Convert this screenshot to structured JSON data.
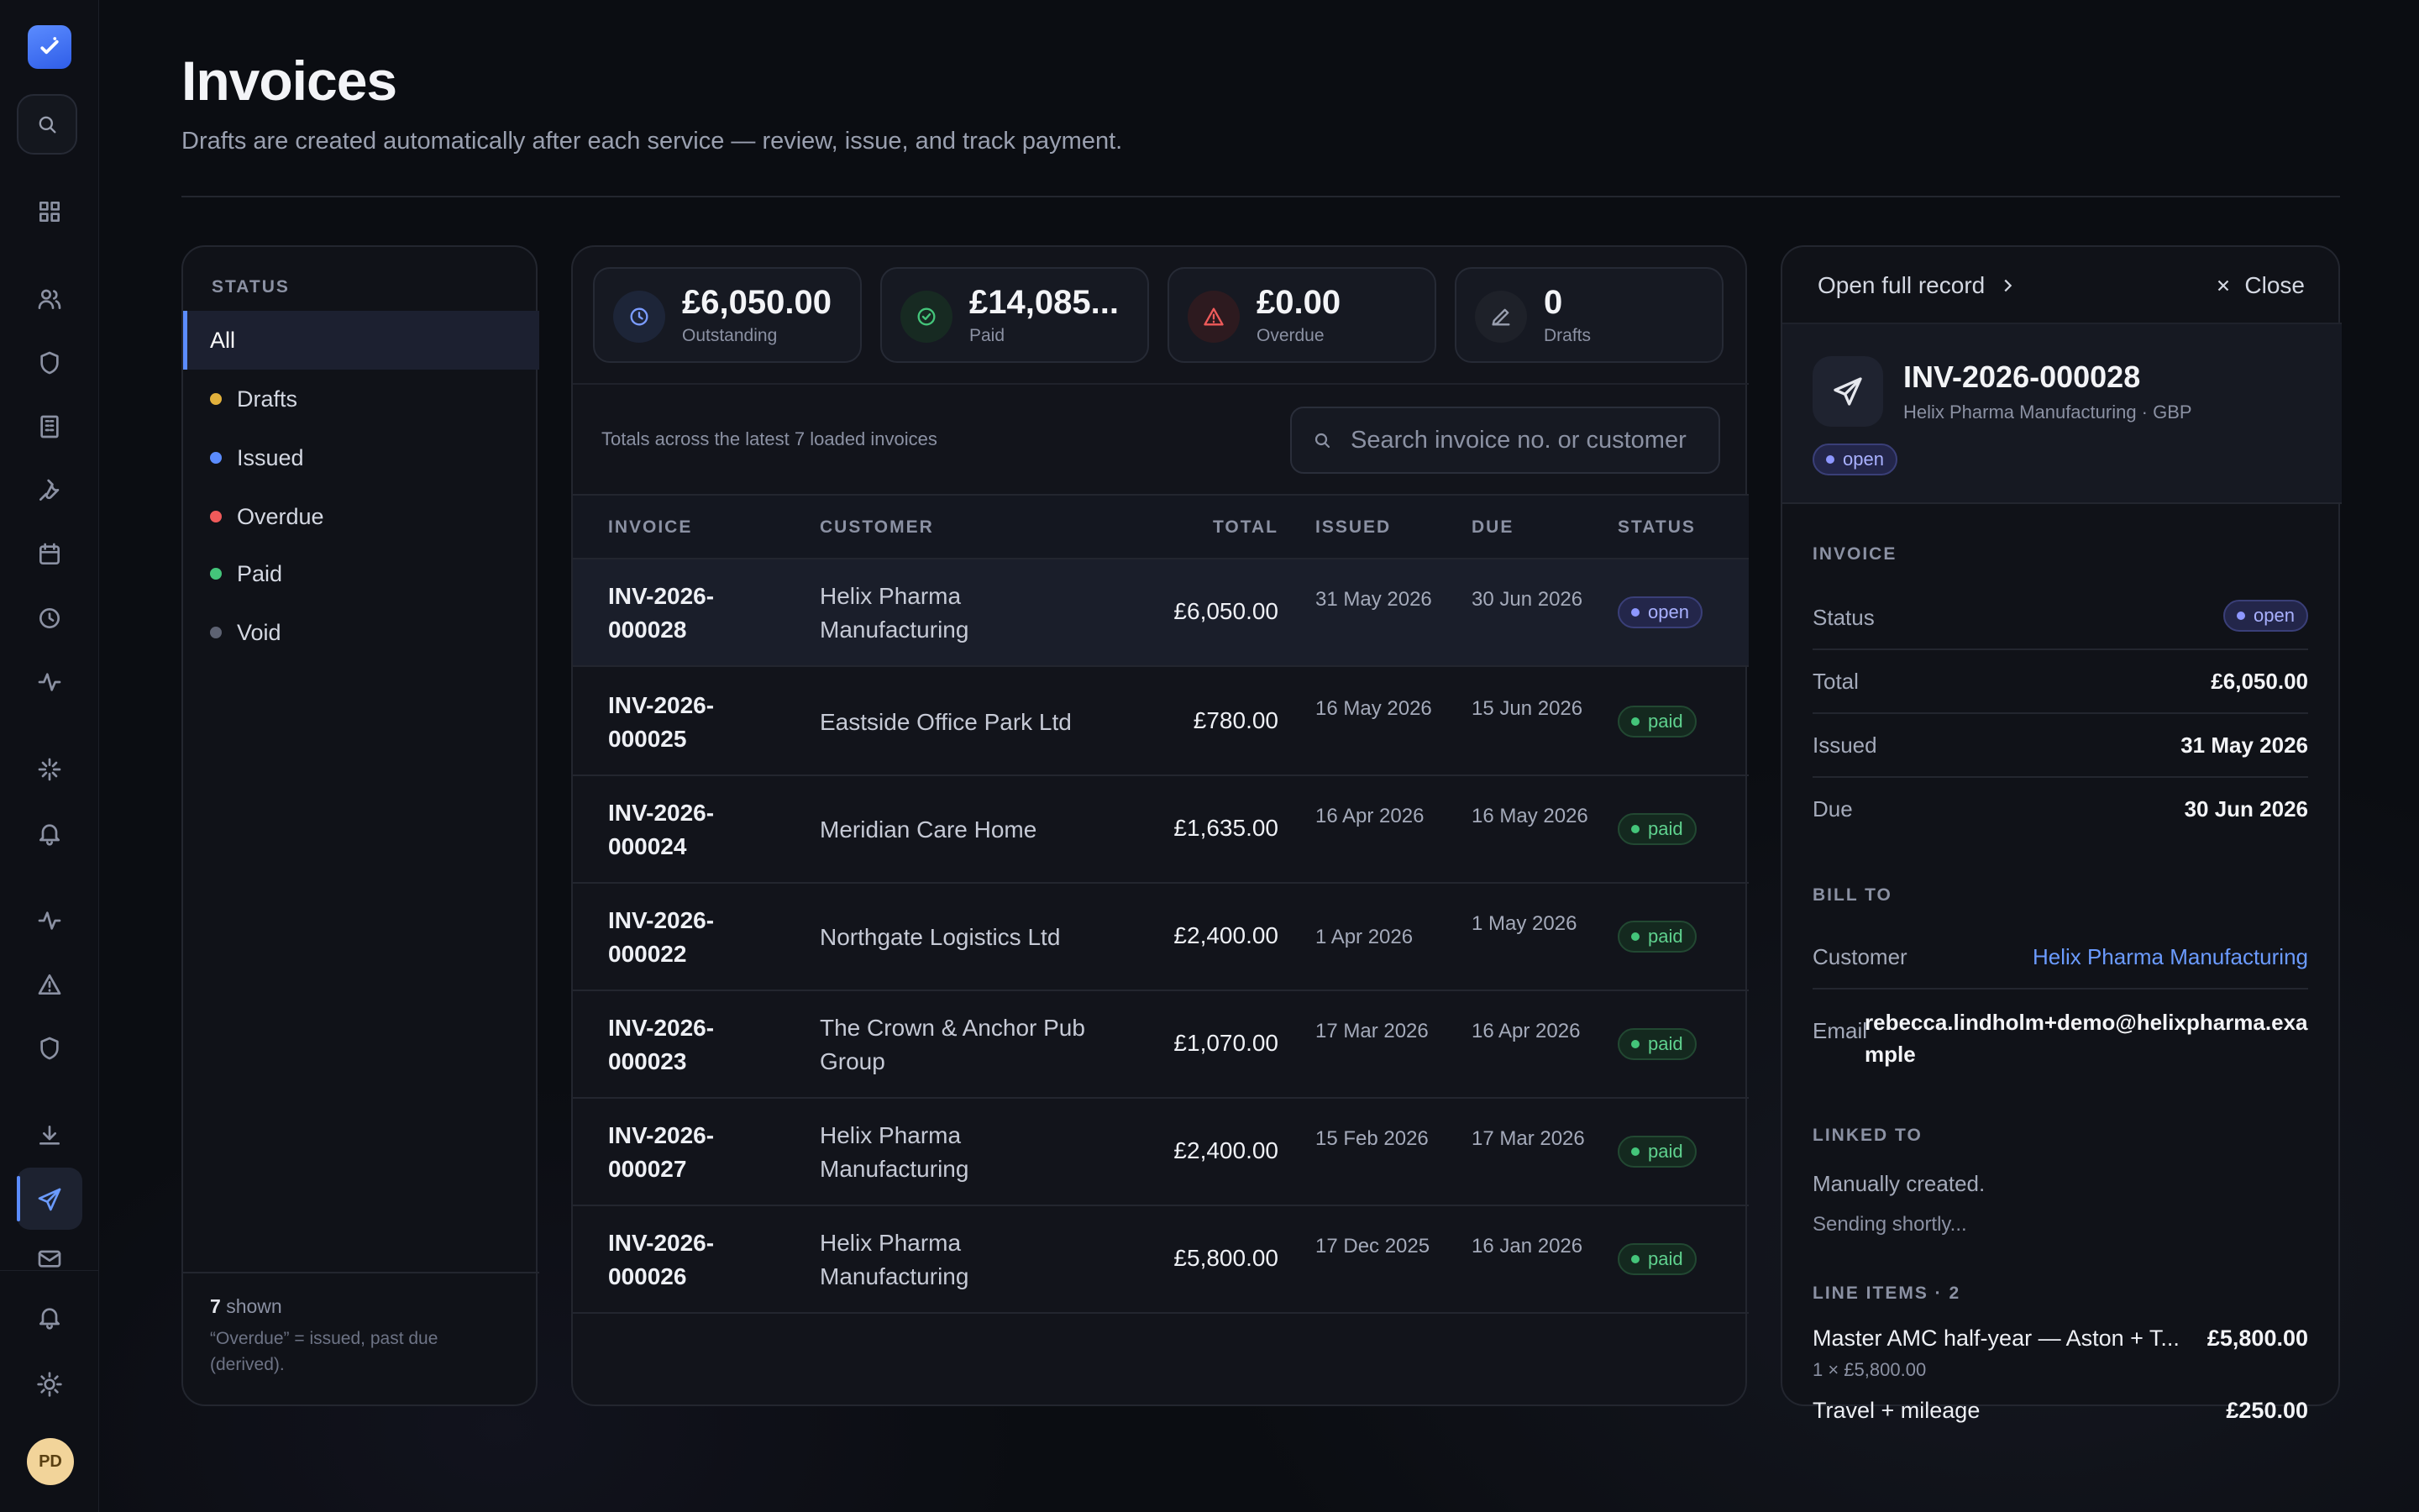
{
  "header": {
    "title": "Invoices",
    "subtitle": "Drafts are created automatically after each service — review, issue, and track payment."
  },
  "rail": {
    "avatar_initials": "PD",
    "icons": [
      "search-icon",
      "dashboard-icon",
      "users-icon",
      "shield-icon",
      "building-icon",
      "wrench-icon",
      "calendar-icon",
      "clock-icon",
      "activity-icon",
      "sparkle-icon",
      "bell-icon",
      "pulse-icon",
      "warning-icon",
      "shield-icon",
      "download-icon",
      "send-icon",
      "mail-icon",
      "bell-icon",
      "sun-icon"
    ],
    "active": "send-icon"
  },
  "status_filter": {
    "heading": "STATUS",
    "items": [
      {
        "label": "All",
        "color": null,
        "active": true
      },
      {
        "label": "Drafts",
        "color": "#e2b13c"
      },
      {
        "label": "Issued",
        "color": "#5b8cff"
      },
      {
        "label": "Overdue",
        "color": "#ef5a5a"
      },
      {
        "label": "Paid",
        "color": "#44c57a"
      },
      {
        "label": "Void",
        "color": "#5d6272"
      }
    ],
    "shown_count": "7",
    "shown_label": "shown",
    "note": "“Overdue” = issued, past due (derived)."
  },
  "stats": [
    {
      "value": "£6,050.00",
      "label": "Outstanding",
      "icon": "clock-icon",
      "color": "#7b9cff"
    },
    {
      "value": "£14,085...",
      "label": "Paid",
      "icon": "check-circle-icon",
      "color": "#44c57a"
    },
    {
      "value": "£0.00",
      "label": "Overdue",
      "icon": "warning-icon",
      "color": "#ef5a5a"
    },
    {
      "value": "0",
      "label": "Drafts",
      "icon": "pencil-icon",
      "color": "#9aa0b0"
    }
  ],
  "totals_note": "Totals across the latest 7 loaded invoices",
  "search": {
    "placeholder": "Search invoice no. or customer"
  },
  "table": {
    "columns": [
      "INVOICE",
      "CUSTOMER",
      "TOTAL",
      "ISSUED",
      "DUE",
      "STATUS"
    ],
    "rows": [
      {
        "invoice": "INV-2026-000028",
        "customer": "Helix Pharma Manufacturing",
        "total": "£6,050.00",
        "issued": "31 May 2026",
        "due": "30 Jun 2026",
        "status": "open"
      },
      {
        "invoice": "INV-2026-000025",
        "customer": "Eastside Office Park Ltd",
        "total": "£780.00",
        "issued": "16 May 2026",
        "due": "15 Jun 2026",
        "status": "paid"
      },
      {
        "invoice": "INV-2026-000024",
        "customer": "Meridian Care Home",
        "total": "£1,635.00",
        "issued": "16 Apr 2026",
        "due": "16 May 2026",
        "status": "paid"
      },
      {
        "invoice": "INV-2026-000022",
        "customer": "Northgate Logistics Ltd",
        "total": "£2,400.00",
        "issued": "1 Apr 2026",
        "due": "1 May 2026",
        "status": "paid"
      },
      {
        "invoice": "INV-2026-000023",
        "customer": "The Crown & Anchor Pub Group",
        "total": "£1,070.00",
        "issued": "17 Mar 2026",
        "due": "16 Apr 2026",
        "status": "paid"
      },
      {
        "invoice": "INV-2026-000027",
        "customer": "Helix Pharma Manufacturing",
        "total": "£2,400.00",
        "issued": "15 Feb 2026",
        "due": "17 Mar 2026",
        "status": "paid"
      },
      {
        "invoice": "INV-2026-000026",
        "customer": "Helix Pharma Manufacturing",
        "total": "£5,800.00",
        "issued": "17 Dec 2025",
        "due": "16 Jan 2026",
        "status": "paid"
      }
    ]
  },
  "detail": {
    "open_full": "Open full record",
    "close": "Close",
    "id": "INV-2026-000028",
    "sub": "Helix Pharma Manufacturing · GBP",
    "status": "open",
    "invoice_heading": "INVOICE",
    "status_label": "Status",
    "total_label": "Total",
    "total": "£6,050.00",
    "issued_label": "Issued",
    "issued": "31 May 2026",
    "due_label": "Due",
    "due": "30 Jun 2026",
    "bill_heading": "BILL TO",
    "customer_label": "Customer",
    "customer": "Helix Pharma Manufacturing",
    "email_label": "Email",
    "email": "rebecca.lindholm+demo@helixpharma.example",
    "linked_heading": "LINKED TO",
    "linked_1": "Manually created.",
    "linked_2": "Sending shortly...",
    "line_items_heading": "LINE ITEMS · 2",
    "line_items": [
      {
        "name": "Master AMC half-year — Aston + T...",
        "amount": "£5,800.00",
        "sub": "1 × £5,800.00"
      },
      {
        "name": "Travel + mileage",
        "amount": "£250.00",
        "sub": ""
      }
    ]
  }
}
